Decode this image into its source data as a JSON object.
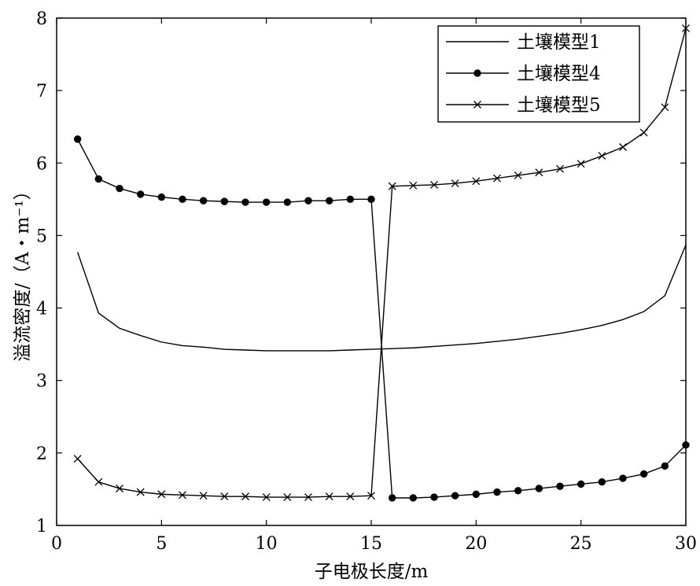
{
  "chart_data": {
    "type": "line",
    "title": "",
    "xlabel": "子电极长度/m",
    "ylabel": "溢流密度/（A・m⁻¹）",
    "xlim": [
      0,
      30
    ],
    "ylim": [
      1,
      8
    ],
    "xticks": [
      0,
      5,
      10,
      15,
      20,
      25,
      30
    ],
    "yticks": [
      1,
      2,
      3,
      4,
      5,
      6,
      7,
      8
    ],
    "grid": false,
    "legend_position": "top-right",
    "series": [
      {
        "name": "土壤模型1",
        "marker": "none",
        "x": [
          1,
          2,
          3,
          4,
          5,
          6,
          7,
          8,
          9,
          10,
          11,
          12,
          13,
          14,
          15,
          16,
          17,
          18,
          19,
          20,
          21,
          22,
          23,
          24,
          25,
          26,
          27,
          28,
          29,
          30
        ],
        "y": [
          4.77,
          3.93,
          3.72,
          3.62,
          3.53,
          3.48,
          3.46,
          3.43,
          3.42,
          3.41,
          3.41,
          3.41,
          3.41,
          3.42,
          3.43,
          3.44,
          3.45,
          3.47,
          3.49,
          3.51,
          3.54,
          3.57,
          3.61,
          3.65,
          3.7,
          3.76,
          3.84,
          3.95,
          4.17,
          4.87
        ]
      },
      {
        "name": "土壤模型4",
        "marker": "dot",
        "x": [
          1,
          2,
          3,
          4,
          5,
          6,
          7,
          8,
          9,
          10,
          11,
          12,
          13,
          14,
          15,
          16,
          17,
          18,
          19,
          20,
          21,
          22,
          23,
          24,
          25,
          26,
          27,
          28,
          29,
          30
        ],
        "y": [
          6.33,
          5.78,
          5.65,
          5.57,
          5.53,
          5.5,
          5.48,
          5.47,
          5.46,
          5.46,
          5.46,
          5.48,
          5.48,
          5.5,
          5.5,
          1.38,
          1.38,
          1.39,
          1.41,
          1.43,
          1.46,
          1.48,
          1.51,
          1.54,
          1.57,
          1.6,
          1.65,
          1.71,
          1.82,
          2.11
        ]
      },
      {
        "name": "土壤模型5",
        "marker": "x",
        "x": [
          1,
          2,
          3,
          4,
          5,
          6,
          7,
          8,
          9,
          10,
          11,
          12,
          13,
          14,
          15,
          16,
          17,
          18,
          19,
          20,
          21,
          22,
          23,
          24,
          25,
          26,
          27,
          28,
          29,
          30
        ],
        "y": [
          1.92,
          1.6,
          1.51,
          1.46,
          1.43,
          1.42,
          1.41,
          1.4,
          1.4,
          1.39,
          1.39,
          1.39,
          1.4,
          1.4,
          1.41,
          5.68,
          5.69,
          5.7,
          5.72,
          5.75,
          5.79,
          5.83,
          5.87,
          5.92,
          5.99,
          6.1,
          6.22,
          6.42,
          6.77,
          7.86
        ]
      }
    ]
  }
}
